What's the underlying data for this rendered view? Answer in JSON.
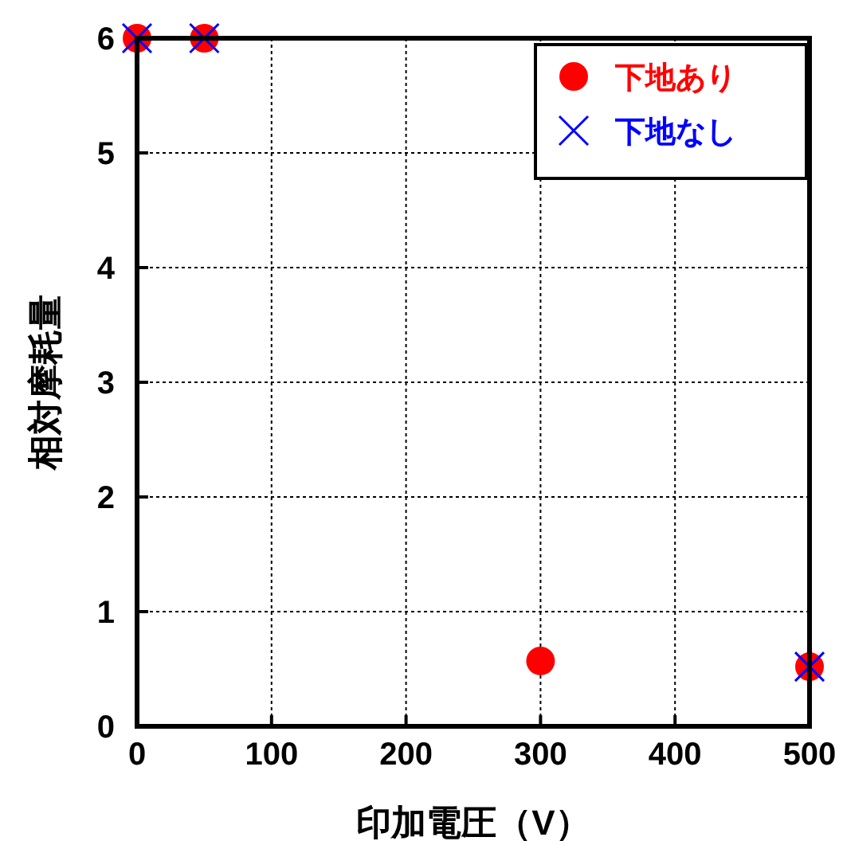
{
  "chart_data": {
    "type": "scatter",
    "xlabel": "印加電圧（V）",
    "ylabel": "相対摩耗量",
    "xlim": [
      0,
      500
    ],
    "xticks": [
      0,
      100,
      200,
      300,
      400,
      500
    ],
    "ylim": [
      0,
      6
    ],
    "yticks": [
      0,
      1,
      2,
      3,
      4,
      5,
      6
    ],
    "grid": true,
    "legend": "top right",
    "series": [
      {
        "name": "下地あり",
        "color": "#ff0000",
        "marker": "circle",
        "x": [
          0,
          50,
          300,
          500
        ],
        "values": [
          6,
          6,
          0.57,
          0.52
        ]
      },
      {
        "name": "下地なし",
        "color": "#0000ff",
        "marker": "cross",
        "x": [
          0,
          50,
          500
        ],
        "values": [
          6,
          6,
          0.52
        ]
      }
    ]
  }
}
